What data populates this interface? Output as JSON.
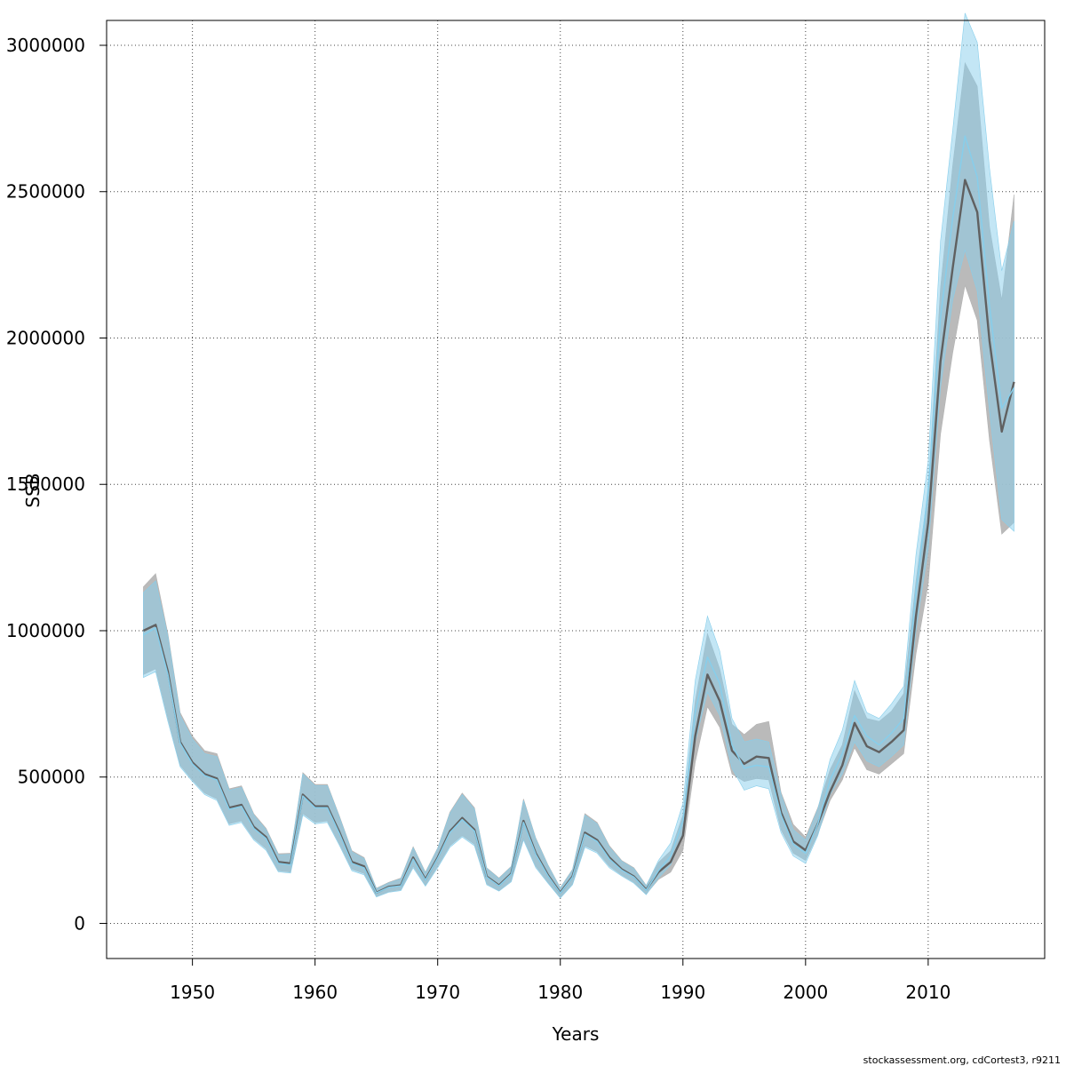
{
  "chart_data": {
    "type": "area",
    "xlabel": "Years",
    "ylabel": "SSB",
    "xlim": [
      1943,
      2019.5
    ],
    "ylim": [
      -120000,
      3085000
    ],
    "x_ticks": [
      1950,
      1960,
      1970,
      1980,
      1990,
      2000,
      2010
    ],
    "y_ticks": [
      0,
      500000,
      1000000,
      1500000,
      2000000,
      2500000,
      3000000
    ],
    "grid": true,
    "footer": "stockassessment.org, cdCortest3, r9211",
    "colors": {
      "gray_band": "#b3b3b3",
      "gray_line": "#606060",
      "blue_band": "#87ceeb",
      "blue_line": "#87ceeb"
    },
    "series": [
      {
        "x": [
          1946,
          1947,
          1948,
          1949,
          1950,
          1951,
          1952,
          1953,
          1954,
          1955,
          1956,
          1957,
          1958,
          1959,
          1960,
          1961,
          1962,
          1963,
          1964,
          1965,
          1966,
          1967,
          1968,
          1969,
          1970,
          1971,
          1972,
          1973,
          1974,
          1975,
          1976,
          1977,
          1978,
          1979,
          1980,
          1981,
          1982,
          1983,
          1984,
          1985,
          1986,
          1987,
          1988,
          1989,
          1990,
          1991,
          1992,
          1993,
          1994,
          1995,
          1996,
          1997,
          1998,
          1999,
          2000,
          2001,
          2002,
          2003,
          2004,
          2005,
          2006,
          2007,
          2008,
          2009,
          2010,
          2011,
          2012,
          2013,
          2014,
          2015,
          2016,
          2017
        ],
        "estimate": [
          1000000,
          1020000,
          860000,
          620000,
          550000,
          510000,
          495000,
          395000,
          405000,
          330000,
          295000,
          210000,
          205000,
          440000,
          400000,
          400000,
          310000,
          210000,
          195000,
          105000,
          125000,
          130000,
          225000,
          150000,
          225000,
          315000,
          360000,
          320000,
          160000,
          130000,
          170000,
          350000,
          240000,
          165000,
          105000,
          160000,
          310000,
          285000,
          225000,
          185000,
          160000,
          115000,
          175000,
          210000,
          300000,
          640000,
          850000,
          760000,
          590000,
          545000,
          570000,
          565000,
          380000,
          280000,
          250000,
          340000,
          450000,
          540000,
          685000,
          605000,
          585000,
          620000,
          660000,
          1050000,
          1370000,
          1920000,
          2240000,
          2540000,
          2430000,
          1990000,
          1680000,
          1850000
        ],
        "lower": [
          850000,
          870000,
          700000,
          540000,
          490000,
          445000,
          425000,
          340000,
          350000,
          290000,
          255000,
          180000,
          175000,
          375000,
          345000,
          350000,
          270000,
          185000,
          170000,
          92000,
          108000,
          115000,
          195000,
          130000,
          195000,
          265000,
          300000,
          270000,
          135000,
          112000,
          145000,
          290000,
          195000,
          140000,
          88000,
          135000,
          265000,
          245000,
          195000,
          165000,
          140000,
          100000,
          150000,
          175000,
          250000,
          550000,
          740000,
          670000,
          510000,
          485000,
          495000,
          490000,
          320000,
          240000,
          215000,
          305000,
          420000,
          490000,
          600000,
          525000,
          510000,
          545000,
          580000,
          920000,
          1160000,
          1670000,
          1950000,
          2180000,
          2060000,
          1650000,
          1330000,
          1370000
        ],
        "upper": [
          1150000,
          1195000,
          990000,
          720000,
          640000,
          590000,
          580000,
          460000,
          470000,
          375000,
          325000,
          238000,
          240000,
          515000,
          475000,
          475000,
          365000,
          248000,
          225000,
          120000,
          140000,
          155000,
          262000,
          175000,
          258000,
          380000,
          445000,
          395000,
          190000,
          155000,
          195000,
          425000,
          292000,
          200000,
          122000,
          185000,
          375000,
          345000,
          265000,
          215000,
          190000,
          130000,
          208000,
          248000,
          370000,
          760000,
          990000,
          870000,
          680000,
          645000,
          680000,
          690000,
          448000,
          338000,
          295000,
          395000,
          525000,
          610000,
          795000,
          700000,
          690000,
          725000,
          785000,
          1170000,
          1480000,
          2170000,
          2590000,
          2940000,
          2860000,
          2380000,
          2130000,
          2490000
        ]
      },
      {
        "x": [
          1946,
          1947,
          1948,
          1949,
          1950,
          1951,
          1952,
          1953,
          1954,
          1955,
          1956,
          1957,
          1958,
          1959,
          1960,
          1961,
          1962,
          1963,
          1964,
          1965,
          1966,
          1967,
          1968,
          1969,
          1970,
          1971,
          1972,
          1973,
          1974,
          1975,
          1976,
          1977,
          1978,
          1979,
          1980,
          1981,
          1982,
          1983,
          1984,
          1985,
          1986,
          1987,
          1988,
          1989,
          1990,
          1991,
          1992,
          1993,
          1994,
          1995,
          1996,
          1997,
          1998,
          1999,
          2000,
          2001,
          2002,
          2003,
          2004,
          2005,
          2006,
          2007,
          2008,
          2009,
          2010,
          2011,
          2012,
          2013,
          2014,
          2015,
          2016,
          2017
        ],
        "estimate": [
          985000,
          1010000,
          850000,
          615000,
          545000,
          505000,
          490000,
          390000,
          400000,
          325000,
          290000,
          205000,
          200000,
          435000,
          395000,
          395000,
          305000,
          205000,
          190000,
          104000,
          123000,
          128000,
          220000,
          148000,
          222000,
          310000,
          355000,
          315000,
          158000,
          128000,
          168000,
          345000,
          236000,
          162000,
          103000,
          158000,
          305000,
          280000,
          220000,
          182000,
          158000,
          113000,
          180000,
          230000,
          350000,
          720000,
          910000,
          820000,
          610000,
          530000,
          540000,
          535000,
          370000,
          270000,
          240000,
          340000,
          490000,
          580000,
          710000,
          640000,
          610000,
          650000,
          700000,
          1130000,
          1480000,
          2070000,
          2410000,
          2690000,
          2550000,
          2110000,
          1760000,
          1830000
        ],
        "lower": [
          840000,
          860000,
          690000,
          535000,
          485000,
          440000,
          420000,
          335000,
          345000,
          285000,
          250000,
          176000,
          172000,
          370000,
          340000,
          345000,
          265000,
          180000,
          166000,
          90000,
          106000,
          112000,
          190000,
          127000,
          190000,
          260000,
          295000,
          265000,
          132000,
          110000,
          142000,
          285000,
          190000,
          137000,
          86000,
          132000,
          260000,
          240000,
          190000,
          162000,
          137000,
          98000,
          155000,
          200000,
          300000,
          620000,
          790000,
          710000,
          530000,
          455000,
          470000,
          460000,
          310000,
          230000,
          205000,
          300000,
          440000,
          510000,
          620000,
          555000,
          535000,
          570000,
          610000,
          1000000,
          1280000,
          1830000,
          2130000,
          2300000,
          2160000,
          1750000,
          1380000,
          1340000
        ],
        "upper": [
          1130000,
          1170000,
          980000,
          710000,
          630000,
          580000,
          570000,
          455000,
          465000,
          370000,
          320000,
          234000,
          236000,
          510000,
          470000,
          470000,
          360000,
          244000,
          221000,
          118000,
          138000,
          152000,
          258000,
          172000,
          255000,
          375000,
          440000,
          390000,
          188000,
          152000,
          193000,
          420000,
          288000,
          197000,
          120000,
          182000,
          370000,
          340000,
          260000,
          212000,
          187000,
          128000,
          215000,
          275000,
          410000,
          830000,
          1050000,
          930000,
          700000,
          620000,
          630000,
          620000,
          440000,
          320000,
          285000,
          390000,
          560000,
          660000,
          830000,
          720000,
          700000,
          750000,
          810000,
          1260000,
          1580000,
          2330000,
          2710000,
          3110000,
          3010000,
          2580000,
          2230000,
          2400000
        ]
      }
    ]
  }
}
